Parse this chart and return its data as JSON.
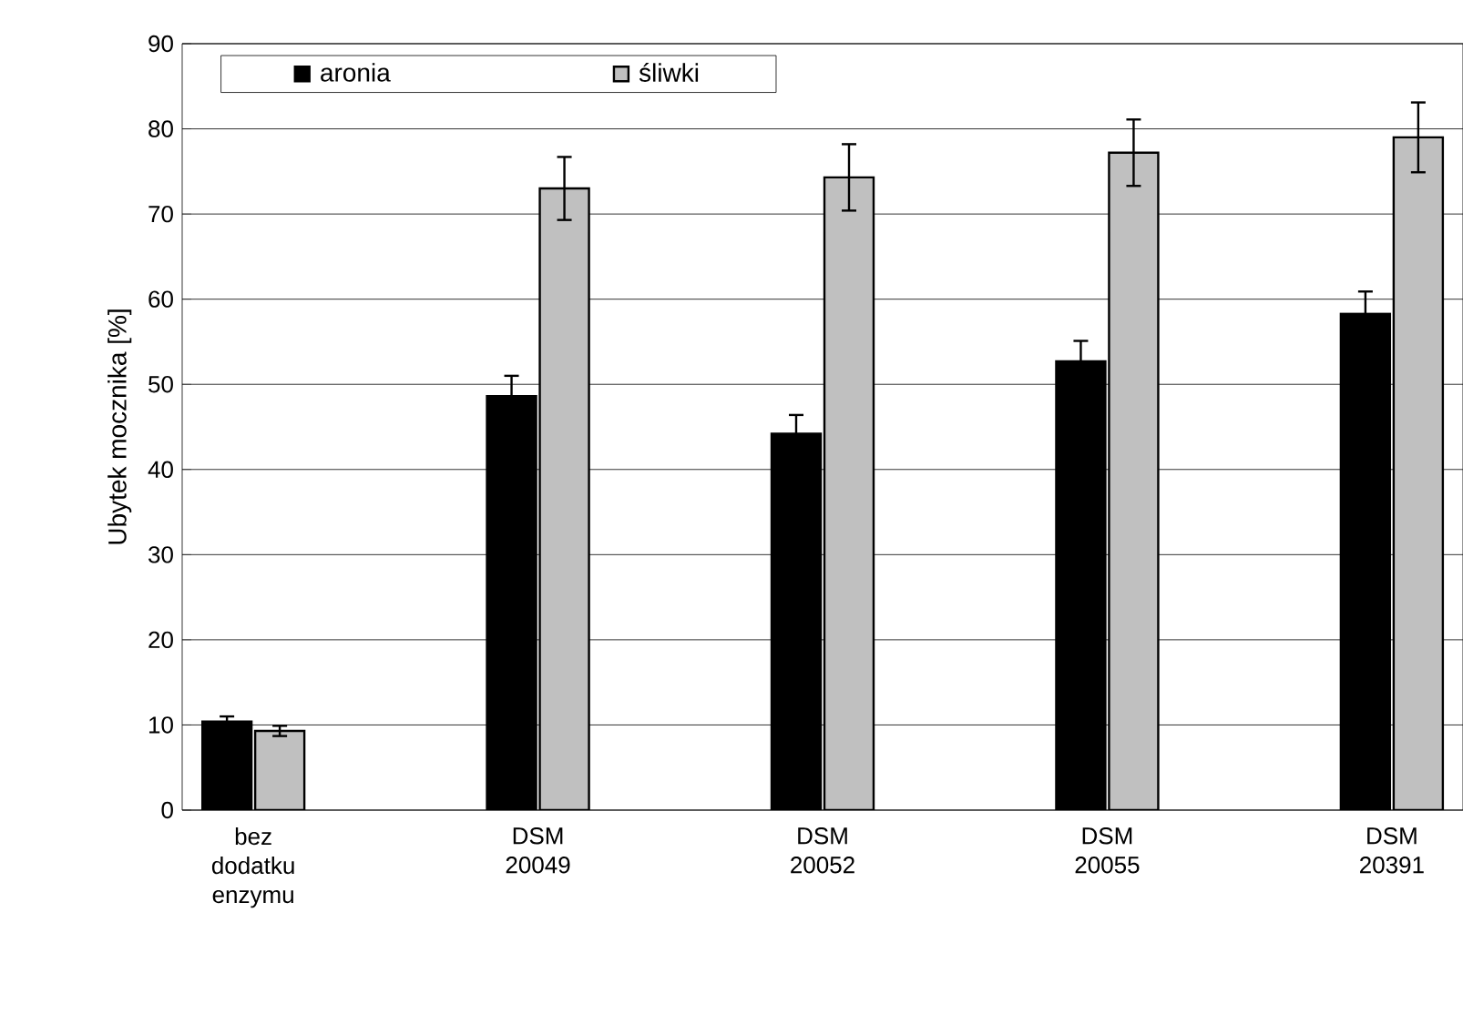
{
  "chart_data": {
    "type": "bar",
    "ylabel": "Ubytek mocznika [%]",
    "categories": [
      "bez dodatku enzymu",
      null,
      "DSM 20049",
      null,
      "DSM 20052",
      null,
      "DSM 20055",
      null,
      "DSM 20391"
    ],
    "series": [
      {
        "name": "aronia",
        "color": "#000000",
        "values": [
          10.4,
          null,
          48.6,
          null,
          44.2,
          null,
          52.7,
          null,
          58.3
        ],
        "errors": [
          0.6,
          null,
          2.4,
          null,
          2.2,
          null,
          2.4,
          null,
          2.6
        ]
      },
      {
        "name": "śliwki",
        "color": "#c0c0c0",
        "values": [
          9.3,
          null,
          73.0,
          null,
          74.3,
          null,
          77.2,
          null,
          79.0
        ],
        "errors": [
          0.6,
          null,
          3.7,
          null,
          3.9,
          null,
          3.9,
          null,
          4.1
        ]
      }
    ],
    "ylim": [
      0,
      90
    ],
    "yticks": [
      0,
      10,
      20,
      30,
      40,
      50,
      60,
      70,
      80,
      90
    ],
    "grid": "y",
    "legend": "top left"
  }
}
